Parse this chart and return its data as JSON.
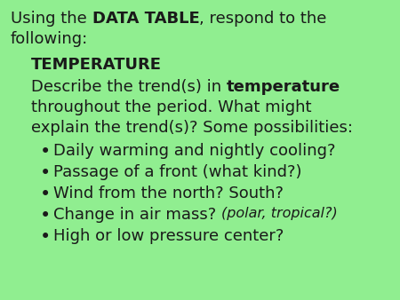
{
  "background_color": "#90EE90",
  "text_color": "#1a1a1a",
  "fontsize": 13.0,
  "title_parts": [
    {
      "text": "Using the ",
      "bold": false
    },
    {
      "text": "DATA TABLE",
      "bold": true
    },
    {
      "text": ", respond to the",
      "bold": false
    }
  ],
  "title_line2": "following:",
  "section_header": "TEMPERATURE",
  "body_line1_parts": [
    {
      "text": "Describe the trend(s) in ",
      "bold": false
    },
    {
      "text": "temperature",
      "bold": true
    }
  ],
  "body_line2": "throughout the period. What might",
  "body_line3": "explain the trend(s)? Some possibilities:",
  "bullets": [
    {
      "text": "Daily warming and nightly cooling?",
      "italic_part": null
    },
    {
      "text": "Passage of a front (what kind?)",
      "italic_part": null
    },
    {
      "text": "Wind from the north? South?",
      "italic_part": null
    },
    {
      "text": "Change in air mass? ",
      "italic_part": "(polar, tropical?)"
    },
    {
      "text": "High or low pressure center?",
      "italic_part": null
    }
  ]
}
